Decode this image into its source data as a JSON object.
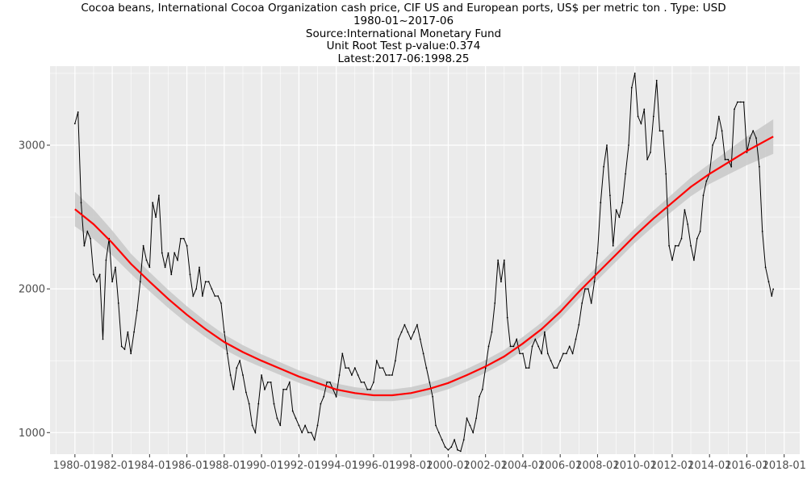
{
  "header": {
    "title": "Cocoa beans, International Cocoa Organization cash price, CIF US and European ports, US$ per metric ton . Type: USD",
    "period": "1980-01~2017-06",
    "source": "Source:International Monetary Fund",
    "unit_root": "Unit Root Test p-value:0.374",
    "latest": "Latest:2017-06:1998.25"
  },
  "colors": {
    "panel": "#ebebeb",
    "grid_major": "#ffffff",
    "series": "#000000",
    "trend": "#ff0000",
    "band": "#c8c8c8"
  },
  "chart_data": {
    "type": "line",
    "title": "Cocoa beans, International Cocoa Organization cash price, CIF US and European ports, US$ per metric ton . Type: USD",
    "xlabel": "",
    "ylabel": "",
    "grid": true,
    "x_ticks": [
      "1980-01",
      "1982-01",
      "1984-01",
      "1986-01",
      "1988-01",
      "1990-01",
      "1992-01",
      "1994-01",
      "1996-01",
      "1998-01",
      "2000-01",
      "2002-01",
      "2004-01",
      "2006-01",
      "2008-01",
      "2010-01",
      "2012-01",
      "2014-01",
      "2016-01",
      "2018-01"
    ],
    "y_ticks": [
      1000,
      2000,
      3000
    ],
    "xlim": [
      "1978-09",
      "2018-11"
    ],
    "ylim": [
      850,
      3550
    ],
    "series": [
      {
        "points": [
          [
            "1980-01",
            3150
          ],
          [
            "1980-03",
            3230
          ],
          [
            "1980-05",
            2600
          ],
          [
            "1980-07",
            2300
          ],
          [
            "1980-09",
            2400
          ],
          [
            "1980-11",
            2350
          ],
          [
            "1981-01",
            2100
          ],
          [
            "1981-03",
            2050
          ],
          [
            "1981-05",
            2100
          ],
          [
            "1981-07",
            1650
          ],
          [
            "1981-09",
            2200
          ],
          [
            "1981-11",
            2350
          ],
          [
            "1982-01",
            2050
          ],
          [
            "1982-03",
            2150
          ],
          [
            "1982-05",
            1900
          ],
          [
            "1982-07",
            1600
          ],
          [
            "1982-09",
            1580
          ],
          [
            "1982-11",
            1700
          ],
          [
            "1983-01",
            1550
          ],
          [
            "1983-03",
            1700
          ],
          [
            "1983-05",
            1850
          ],
          [
            "1983-07",
            2050
          ],
          [
            "1983-09",
            2300
          ],
          [
            "1983-11",
            2200
          ],
          [
            "1984-01",
            2150
          ],
          [
            "1984-03",
            2600
          ],
          [
            "1984-05",
            2500
          ],
          [
            "1984-07",
            2650
          ],
          [
            "1984-09",
            2250
          ],
          [
            "1984-11",
            2150
          ],
          [
            "1985-01",
            2250
          ],
          [
            "1985-03",
            2100
          ],
          [
            "1985-05",
            2250
          ],
          [
            "1985-07",
            2200
          ],
          [
            "1985-09",
            2350
          ],
          [
            "1985-11",
            2350
          ],
          [
            "1986-01",
            2300
          ],
          [
            "1986-03",
            2100
          ],
          [
            "1986-05",
            1950
          ],
          [
            "1986-07",
            2000
          ],
          [
            "1986-09",
            2150
          ],
          [
            "1986-11",
            1950
          ],
          [
            "1987-01",
            2050
          ],
          [
            "1987-03",
            2050
          ],
          [
            "1987-05",
            2000
          ],
          [
            "1987-07",
            1950
          ],
          [
            "1987-09",
            1950
          ],
          [
            "1987-11",
            1900
          ],
          [
            "1988-01",
            1700
          ],
          [
            "1988-03",
            1550
          ],
          [
            "1988-05",
            1400
          ],
          [
            "1988-07",
            1300
          ],
          [
            "1988-09",
            1450
          ],
          [
            "1988-11",
            1500
          ],
          [
            "1989-01",
            1400
          ],
          [
            "1989-03",
            1280
          ],
          [
            "1989-05",
            1200
          ],
          [
            "1989-07",
            1050
          ],
          [
            "1989-09",
            1000
          ],
          [
            "1989-11",
            1200
          ],
          [
            "1990-01",
            1400
          ],
          [
            "1990-03",
            1300
          ],
          [
            "1990-05",
            1350
          ],
          [
            "1990-07",
            1350
          ],
          [
            "1990-09",
            1200
          ],
          [
            "1990-11",
            1100
          ],
          [
            "1991-01",
            1050
          ],
          [
            "1991-03",
            1300
          ],
          [
            "1991-05",
            1300
          ],
          [
            "1991-07",
            1350
          ],
          [
            "1991-09",
            1150
          ],
          [
            "1991-11",
            1100
          ],
          [
            "1992-01",
            1050
          ],
          [
            "1992-03",
            1000
          ],
          [
            "1992-05",
            1050
          ],
          [
            "1992-07",
            1000
          ],
          [
            "1992-09",
            1000
          ],
          [
            "1992-11",
            950
          ],
          [
            "1993-01",
            1050
          ],
          [
            "1993-03",
            1200
          ],
          [
            "1993-05",
            1250
          ],
          [
            "1993-07",
            1350
          ],
          [
            "1993-09",
            1350
          ],
          [
            "1993-11",
            1300
          ],
          [
            "1994-01",
            1250
          ],
          [
            "1994-03",
            1400
          ],
          [
            "1994-05",
            1550
          ],
          [
            "1994-07",
            1450
          ],
          [
            "1994-09",
            1450
          ],
          [
            "1994-11",
            1400
          ],
          [
            "1995-01",
            1450
          ],
          [
            "1995-03",
            1400
          ],
          [
            "1995-05",
            1350
          ],
          [
            "1995-07",
            1350
          ],
          [
            "1995-09",
            1300
          ],
          [
            "1995-11",
            1300
          ],
          [
            "1996-01",
            1350
          ],
          [
            "1996-03",
            1500
          ],
          [
            "1996-05",
            1450
          ],
          [
            "1996-07",
            1450
          ],
          [
            "1996-09",
            1400
          ],
          [
            "1996-11",
            1400
          ],
          [
            "1997-01",
            1400
          ],
          [
            "1997-03",
            1500
          ],
          [
            "1997-05",
            1650
          ],
          [
            "1997-07",
            1700
          ],
          [
            "1997-09",
            1750
          ],
          [
            "1997-11",
            1700
          ],
          [
            "1998-01",
            1650
          ],
          [
            "1998-03",
            1700
          ],
          [
            "1998-05",
            1750
          ],
          [
            "1998-07",
            1650
          ],
          [
            "1998-09",
            1550
          ],
          [
            "1998-11",
            1450
          ],
          [
            "1999-01",
            1350
          ],
          [
            "1999-03",
            1250
          ],
          [
            "1999-05",
            1050
          ],
          [
            "1999-07",
            1000
          ],
          [
            "1999-09",
            950
          ],
          [
            "1999-11",
            900
          ],
          [
            "2000-01",
            880
          ],
          [
            "2000-03",
            900
          ],
          [
            "2000-05",
            950
          ],
          [
            "2000-07",
            880
          ],
          [
            "2000-09",
            870
          ],
          [
            "2000-11",
            950
          ],
          [
            "2001-01",
            1100
          ],
          [
            "2001-03",
            1050
          ],
          [
            "2001-05",
            1000
          ],
          [
            "2001-07",
            1100
          ],
          [
            "2001-09",
            1250
          ],
          [
            "2001-11",
            1300
          ],
          [
            "2002-01",
            1450
          ],
          [
            "2002-03",
            1600
          ],
          [
            "2002-05",
            1700
          ],
          [
            "2002-07",
            1900
          ],
          [
            "2002-09",
            2200
          ],
          [
            "2002-11",
            2050
          ],
          [
            "2003-01",
            2200
          ],
          [
            "2003-03",
            1800
          ],
          [
            "2003-05",
            1600
          ],
          [
            "2003-07",
            1600
          ],
          [
            "2003-09",
            1650
          ],
          [
            "2003-11",
            1550
          ],
          [
            "2004-01",
            1550
          ],
          [
            "2004-03",
            1450
          ],
          [
            "2004-05",
            1450
          ],
          [
            "2004-07",
            1600
          ],
          [
            "2004-09",
            1650
          ],
          [
            "2004-11",
            1600
          ],
          [
            "2005-01",
            1550
          ],
          [
            "2005-03",
            1700
          ],
          [
            "2005-05",
            1550
          ],
          [
            "2005-07",
            1500
          ],
          [
            "2005-09",
            1450
          ],
          [
            "2005-11",
            1450
          ],
          [
            "2006-01",
            1500
          ],
          [
            "2006-03",
            1550
          ],
          [
            "2006-05",
            1550
          ],
          [
            "2006-07",
            1600
          ],
          [
            "2006-09",
            1550
          ],
          [
            "2006-11",
            1650
          ],
          [
            "2007-01",
            1750
          ],
          [
            "2007-03",
            1900
          ],
          [
            "2007-05",
            2000
          ],
          [
            "2007-07",
            2000
          ],
          [
            "2007-09",
            1900
          ],
          [
            "2007-11",
            2050
          ],
          [
            "2008-01",
            2250
          ],
          [
            "2008-03",
            2600
          ],
          [
            "2008-05",
            2850
          ],
          [
            "2008-07",
            3000
          ],
          [
            "2008-09",
            2650
          ],
          [
            "2008-11",
            2300
          ],
          [
            "2009-01",
            2550
          ],
          [
            "2009-03",
            2500
          ],
          [
            "2009-05",
            2600
          ],
          [
            "2009-07",
            2800
          ],
          [
            "2009-09",
            3000
          ],
          [
            "2009-11",
            3400
          ],
          [
            "2010-01",
            3500
          ],
          [
            "2010-03",
            3200
          ],
          [
            "2010-05",
            3150
          ],
          [
            "2010-07",
            3250
          ],
          [
            "2010-09",
            2900
          ],
          [
            "2010-11",
            2950
          ],
          [
            "2011-01",
            3200
          ],
          [
            "2011-03",
            3450
          ],
          [
            "2011-05",
            3100
          ],
          [
            "2011-07",
            3100
          ],
          [
            "2011-09",
            2800
          ],
          [
            "2011-11",
            2300
          ],
          [
            "2012-01",
            2200
          ],
          [
            "2012-03",
            2300
          ],
          [
            "2012-05",
            2300
          ],
          [
            "2012-07",
            2350
          ],
          [
            "2012-09",
            2550
          ],
          [
            "2012-11",
            2450
          ],
          [
            "2013-01",
            2300
          ],
          [
            "2013-03",
            2200
          ],
          [
            "2013-05",
            2350
          ],
          [
            "2013-07",
            2400
          ],
          [
            "2013-09",
            2650
          ],
          [
            "2013-11",
            2750
          ],
          [
            "2014-01",
            2800
          ],
          [
            "2014-03",
            3000
          ],
          [
            "2014-05",
            3050
          ],
          [
            "2014-07",
            3200
          ],
          [
            "2014-09",
            3100
          ],
          [
            "2014-11",
            2900
          ],
          [
            "2015-01",
            2900
          ],
          [
            "2015-03",
            2850
          ],
          [
            "2015-05",
            3250
          ],
          [
            "2015-07",
            3300
          ],
          [
            "2015-09",
            3300
          ],
          [
            "2015-11",
            3300
          ],
          [
            "2016-01",
            2950
          ],
          [
            "2016-03",
            3050
          ],
          [
            "2016-05",
            3100
          ],
          [
            "2016-07",
            3050
          ],
          [
            "2016-09",
            2850
          ],
          [
            "2016-11",
            2400
          ],
          [
            "2017-01",
            2150
          ],
          [
            "2017-03",
            2050
          ],
          [
            "2017-05",
            1950
          ],
          [
            "2017-06",
            1998.25
          ]
        ]
      },
      {
        "kind": "smoothed trend with confidence band",
        "points": [
          [
            "1980-01",
            2555
          ],
          [
            "1981-01",
            2450
          ],
          [
            "1982-01",
            2320
          ],
          [
            "1983-01",
            2175
          ],
          [
            "1984-01",
            2050
          ],
          [
            "1985-01",
            1930
          ],
          [
            "1986-01",
            1820
          ],
          [
            "1987-01",
            1720
          ],
          [
            "1988-01",
            1630
          ],
          [
            "1989-01",
            1560
          ],
          [
            "1990-01",
            1500
          ],
          [
            "1991-01",
            1445
          ],
          [
            "1992-01",
            1390
          ],
          [
            "1993-01",
            1345
          ],
          [
            "1994-01",
            1300
          ],
          [
            "1995-01",
            1275
          ],
          [
            "1996-01",
            1260
          ],
          [
            "1997-01",
            1260
          ],
          [
            "1998-01",
            1275
          ],
          [
            "1999-01",
            1305
          ],
          [
            "2000-01",
            1345
          ],
          [
            "2001-01",
            1400
          ],
          [
            "2002-01",
            1460
          ],
          [
            "2003-01",
            1530
          ],
          [
            "2004-01",
            1620
          ],
          [
            "2005-01",
            1720
          ],
          [
            "2006-01",
            1840
          ],
          [
            "2007-01",
            1980
          ],
          [
            "2008-01",
            2110
          ],
          [
            "2009-01",
            2240
          ],
          [
            "2010-01",
            2370
          ],
          [
            "2011-01",
            2490
          ],
          [
            "2012-01",
            2600
          ],
          [
            "2013-01",
            2710
          ],
          [
            "2014-01",
            2800
          ],
          [
            "2015-01",
            2880
          ],
          [
            "2016-01",
            2960
          ],
          [
            "2017-06",
            3060
          ]
        ],
        "band_halfwidth": [
          [
            "1980-01",
            120
          ],
          [
            "1983-01",
            70
          ],
          [
            "1990-01",
            45
          ],
          [
            "1996-01",
            40
          ],
          [
            "2002-01",
            45
          ],
          [
            "2010-01",
            50
          ],
          [
            "2014-01",
            70
          ],
          [
            "2017-06",
            120
          ]
        ]
      }
    ]
  }
}
